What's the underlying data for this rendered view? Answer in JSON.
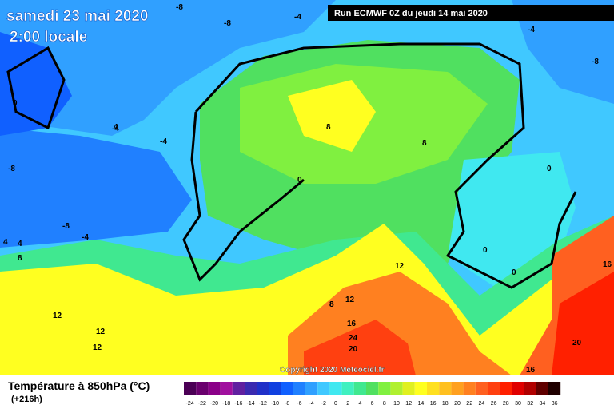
{
  "header": {
    "title": "samedi 23 mai 2020",
    "time": "2:00 locale",
    "run": "Run ECMWF 0Z du jeudi 14 mai 2020"
  },
  "copyright": "Copyright 2020 Meteociel.fr",
  "contour_labels": [
    "-8",
    "-8",
    "-4",
    "-4",
    "-4",
    "-8",
    "-8",
    "-4",
    "-4",
    "-8",
    "-4",
    "0",
    "0",
    "4",
    "4",
    "4",
    "8",
    "8",
    "8",
    "0",
    "8",
    "0",
    "0",
    "0",
    "12",
    "8",
    "12",
    "16",
    "12",
    "12",
    "12",
    "16",
    "20",
    "24",
    "20",
    "16",
    "16"
  ],
  "legend": {
    "title": "Température à 850hPa (°C)",
    "subtitle": "(+216h)",
    "steps": [
      {
        "label": "-24",
        "color": "#4b0055"
      },
      {
        "label": "-22",
        "color": "#6a006e"
      },
      {
        "label": "-20",
        "color": "#8a0088"
      },
      {
        "label": "-18",
        "color": "#a0109e"
      },
      {
        "label": "-16",
        "color": "#6020a0"
      },
      {
        "label": "-14",
        "color": "#3a2ab0"
      },
      {
        "label": "-12",
        "color": "#2030c8"
      },
      {
        "label": "-10",
        "color": "#1040e0"
      },
      {
        "label": "-8",
        "color": "#1060ff"
      },
      {
        "label": "-6",
        "color": "#2080ff"
      },
      {
        "label": "-4",
        "color": "#30a0ff"
      },
      {
        "label": "-2",
        "color": "#40c8ff"
      },
      {
        "label": "0",
        "color": "#40e8f0"
      },
      {
        "label": "2",
        "color": "#40f0c0"
      },
      {
        "label": "4",
        "color": "#40e890"
      },
      {
        "label": "6",
        "color": "#50e060"
      },
      {
        "label": "8",
        "color": "#80f040"
      },
      {
        "label": "10",
        "color": "#b0f030"
      },
      {
        "label": "12",
        "color": "#e0f020"
      },
      {
        "label": "14",
        "color": "#ffff20"
      },
      {
        "label": "16",
        "color": "#ffe020"
      },
      {
        "label": "18",
        "color": "#ffc020"
      },
      {
        "label": "20",
        "color": "#ffa020"
      },
      {
        "label": "22",
        "color": "#ff8020"
      },
      {
        "label": "24",
        "color": "#ff6020"
      },
      {
        "label": "26",
        "color": "#ff4010"
      },
      {
        "label": "28",
        "color": "#ff2000"
      },
      {
        "label": "30",
        "color": "#e00000"
      },
      {
        "label": "32",
        "color": "#b00000"
      },
      {
        "label": "34",
        "color": "#600000"
      },
      {
        "label": "36",
        "color": "#200000"
      }
    ]
  }
}
